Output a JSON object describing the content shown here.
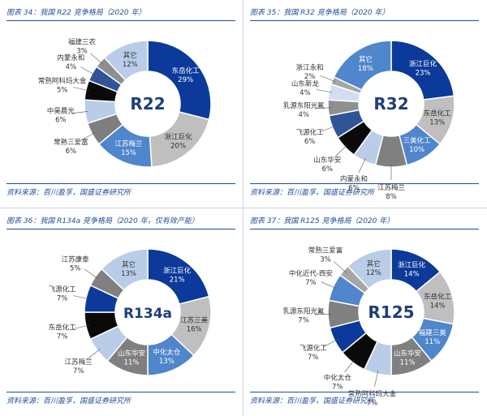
{
  "figures": [
    {
      "title": "图表 34：我国 R22 竞争格局（2020 年）",
      "source": "资料来源：百川盈孚，国盛证券研究所",
      "center_label": "R22"
    },
    {
      "title": "图表 35：我国 R32 竞争格局（2020 年）",
      "source": "资料来源：百川盈孚，国盛证券研究所",
      "center_label": "R32"
    },
    {
      "title": "图表 36：我国 R134a 竞争格局（2020 年，仅有效产能）",
      "source": "资料来源：百川盈孚，国盛证券研究所",
      "center_label": "R134a"
    },
    {
      "title": "图表 37：我国 R125 竞争格局（2020 年）",
      "source": "资料来源：百川盈孚，国盛证券研究所",
      "center_label": "R125"
    }
  ],
  "chart_data": [
    {
      "type": "pie",
      "title": "图表 34：我国 R22 竞争格局（2020 年）",
      "center_label": "R22",
      "labels": [
        "东岳化工",
        "浙江巨化",
        "江苏梅兰",
        "常熟三爱富",
        "中昊晨光",
        "常熟阿科玛大金",
        "内蒙永和",
        "福建三农",
        "其它"
      ],
      "values": [
        29,
        20,
        15,
        6,
        6,
        5,
        4,
        3,
        12
      ],
      "value_labels": [
        "29%",
        "20%",
        "15%",
        "6%",
        "6%",
        "5%",
        "4%",
        "3%",
        "12%"
      ],
      "colors": [
        "#0b3a9a",
        "#bfbfbf",
        "#4f86cc",
        "#7f7f7f",
        "#b9cde8",
        "#0a0a0a",
        "#2f5597",
        "#8f8f8f",
        "#b9cde8"
      ]
    },
    {
      "type": "pie",
      "title": "图表 35：我国 R32 竞争格局（2020 年）",
      "center_label": "R32",
      "labels": [
        "浙江巨化",
        "东岳化工",
        "三美化工",
        "江苏梅兰",
        "内蒙永和",
        "山东华安",
        "飞源化工",
        "乳源东阳光氟",
        "山东新龙",
        "浙江永和",
        "其它"
      ],
      "values": [
        23,
        13,
        10,
        8,
        6,
        6,
        6,
        4,
        4,
        2,
        18
      ],
      "value_labels": [
        "23%",
        "13%",
        "10%",
        "8%",
        "6%",
        "6%",
        "6%",
        "4%",
        "4%",
        "2%",
        "18%"
      ],
      "colors": [
        "#0b3a9a",
        "#bfbfbf",
        "#4f86cc",
        "#808080",
        "#b9cde8",
        "#0a0a0a",
        "#2f5597",
        "#8f8f8f",
        "#d2def0",
        "#a6a6a6",
        "#4f86cc"
      ]
    },
    {
      "type": "pie",
      "title": "图表 36：我国 R134a 竞争格局（2020 年，仅有效产能）",
      "center_label": "R134a",
      "labels": [
        "浙江巨化",
        "江苏三美",
        "中化太仓",
        "山东华安",
        "江苏梅兰",
        "东岳化工",
        "飞源化工",
        "江苏康泰",
        "其它"
      ],
      "values": [
        21,
        16,
        13,
        11,
        7,
        7,
        7,
        5,
        13
      ],
      "value_labels": [
        "21%",
        "16%",
        "13%",
        "11%",
        "7%",
        "7%",
        "7%",
        "5%",
        "13%"
      ],
      "colors": [
        "#0b3a9a",
        "#bfbfbf",
        "#4f86cc",
        "#7f7f7f",
        "#b9cde8",
        "#0a0a0a",
        "#0b3a9a",
        "#808080",
        "#b9cde8"
      ]
    },
    {
      "type": "pie",
      "title": "图表 37：我国 R125 竞争格局（2020 年）",
      "center_label": "R125",
      "labels": [
        "浙江巨化",
        "东岳化工",
        "福建三美",
        "山东华安",
        "常熟阿科玛大金",
        "中化太仓",
        "飞源化工",
        "乳源东阳光氟",
        "中化近代-西安",
        "常熟三爱富",
        "其它"
      ],
      "values": [
        14,
        14,
        11,
        11,
        7,
        7,
        7,
        7,
        7,
        3,
        12
      ],
      "value_labels": [
        "14%",
        "14%",
        "11%",
        "11%",
        "7%",
        "7%",
        "7%",
        "7%",
        "7%",
        "3%",
        "12%"
      ],
      "colors": [
        "#0b3a9a",
        "#bfbfbf",
        "#4f86cc",
        "#7f7f7f",
        "#b9cde8",
        "#0a0a0a",
        "#0b3a9a",
        "#808080",
        "#4f86cc",
        "#a6a6a6",
        "#b9cde8"
      ]
    }
  ]
}
